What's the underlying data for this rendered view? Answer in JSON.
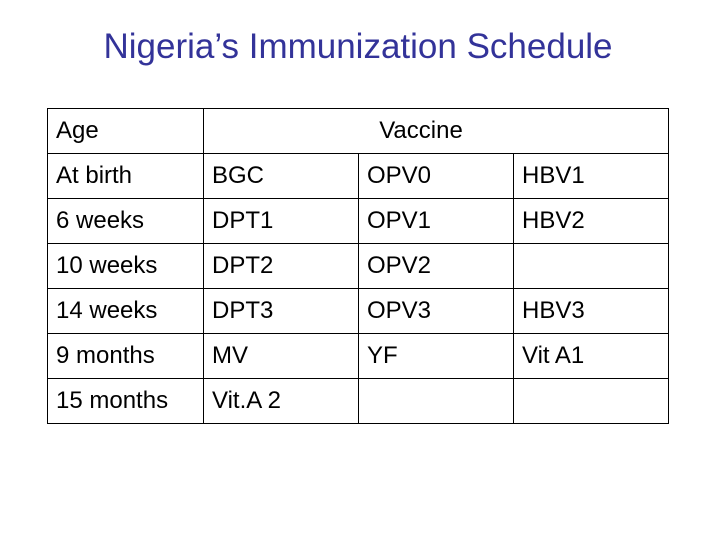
{
  "title": "Nigeria’s Immunization Schedule",
  "table": {
    "header": {
      "age": "Age",
      "vaccine": "Vaccine"
    },
    "rows": [
      {
        "age": "At birth",
        "vaccines": [
          "BGC",
          "OPV0",
          "HBV1"
        ]
      },
      {
        "age": "6 weeks",
        "vaccines": [
          "DPT1",
          "OPV1",
          "HBV2"
        ]
      },
      {
        "age": "10 weeks",
        "vaccines": [
          "DPT2",
          "OPV2",
          ""
        ]
      },
      {
        "age": "14 weeks",
        "vaccines": [
          "DPT3",
          "OPV3",
          "HBV3"
        ]
      },
      {
        "age": "9 months",
        "vaccines": [
          "MV",
          "YF",
          "Vit A1"
        ]
      },
      {
        "age": "15 months",
        "vaccines": [
          "Vit.A 2",
          "",
          ""
        ]
      }
    ]
  }
}
